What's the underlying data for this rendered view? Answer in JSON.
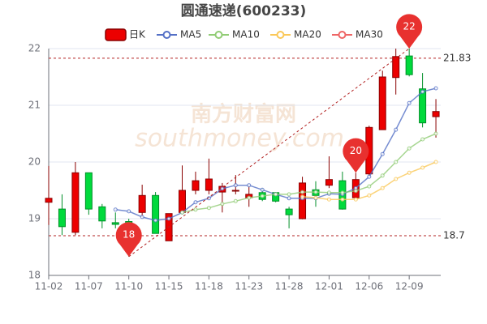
{
  "chart_data": {
    "type": "candlestick",
    "title": "圆通速递(600233)",
    "watermark": [
      "南方财富网",
      "southmoney.com"
    ],
    "categories": [
      "11-02",
      null,
      null,
      "11-07",
      null,
      null,
      "11-10",
      null,
      null,
      "11-15",
      null,
      null,
      "11-18",
      null,
      null,
      "11-23",
      null,
      null,
      "11-28",
      null,
      null,
      "12-01",
      null,
      null,
      "12-06",
      null,
      null,
      "12-09",
      null,
      null
    ],
    "candles": {
      "name": "日K",
      "color_up": "#ec0000",
      "color_down": "#00da3c",
      "border_up": "#8a0000",
      "border_down": "#008f28",
      "open": [
        19.29,
        19.17,
        18.76,
        19.81,
        19.21,
        18.93,
        18.95,
        19.11,
        19.41,
        18.61,
        19.11,
        19.5,
        19.5,
        19.47,
        19.49,
        19.37,
        19.46,
        19.46,
        19.17,
        19.0,
        19.51,
        19.59,
        19.67,
        19.37,
        19.79,
        20.57,
        21.49,
        21.87,
        21.29,
        20.8
      ],
      "close": [
        19.36,
        18.86,
        19.81,
        19.17,
        18.96,
        18.9,
        18.9,
        19.41,
        18.74,
        19.09,
        19.5,
        19.67,
        19.7,
        19.57,
        19.5,
        19.43,
        19.34,
        19.31,
        19.07,
        19.63,
        19.41,
        19.69,
        19.17,
        19.69,
        20.61,
        21.5,
        21.86,
        21.54,
        20.69,
        20.89
      ],
      "high": [
        19.93,
        19.43,
        20.0,
        19.81,
        19.26,
        19.11,
        19.0,
        19.6,
        19.47,
        19.09,
        19.94,
        19.83,
        20.06,
        19.63,
        19.77,
        19.57,
        19.54,
        19.47,
        19.21,
        19.74,
        19.66,
        20.1,
        19.83,
        19.81,
        20.64,
        21.61,
        22.0,
        22.0,
        21.57,
        21.11
      ],
      "low": [
        18.89,
        18.71,
        18.71,
        19.07,
        18.83,
        18.83,
        18.33,
        19.03,
        18.74,
        18.61,
        19.11,
        19.43,
        19.43,
        19.11,
        19.43,
        19.21,
        19.31,
        19.29,
        18.83,
        18.99,
        19.21,
        19.54,
        19.16,
        19.36,
        19.77,
        20.57,
        21.19,
        21.51,
        20.61,
        20.43
      ]
    },
    "series": [
      {
        "name": "MA5",
        "color": "#5470c6",
        "values": [
          null,
          null,
          null,
          null,
          null,
          19.16,
          19.13,
          19.03,
          18.97,
          19.0,
          19.11,
          19.29,
          19.36,
          19.53,
          19.59,
          19.59,
          19.51,
          19.43,
          19.36,
          19.36,
          19.36,
          19.44,
          19.43,
          19.54,
          19.74,
          20.14,
          20.57,
          21.04,
          21.24,
          21.3
        ]
      },
      {
        "name": "MA10",
        "color": "#91cc75",
        "values": [
          null,
          null,
          null,
          null,
          null,
          null,
          null,
          null,
          null,
          null,
          19.11,
          19.16,
          19.19,
          19.26,
          19.31,
          19.37,
          19.4,
          19.43,
          19.43,
          19.47,
          19.47,
          19.46,
          19.46,
          19.49,
          19.57,
          19.76,
          20.0,
          20.24,
          20.4,
          20.5
        ]
      },
      {
        "name": "MA20",
        "color": "#fac858",
        "values": [
          null,
          null,
          null,
          null,
          null,
          null,
          null,
          null,
          null,
          null,
          null,
          null,
          null,
          null,
          null,
          null,
          null,
          null,
          null,
          19.39,
          19.37,
          19.34,
          19.34,
          19.34,
          19.41,
          19.54,
          19.7,
          19.81,
          19.9,
          20.0
        ]
      },
      {
        "name": "MA30",
        "color": "#ee6666",
        "values": [
          null,
          null,
          null,
          null,
          null,
          null,
          null,
          null,
          null,
          null,
          null,
          null,
          null,
          null,
          null,
          null,
          null,
          null,
          null,
          null,
          null,
          null,
          null,
          null,
          null,
          null,
          null,
          null,
          null,
          null
        ]
      }
    ],
    "markers": [
      {
        "value": 18,
        "index": 6,
        "at": "low"
      },
      {
        "value": 20,
        "index": 23,
        "at": "high"
      },
      {
        "value": 22,
        "index": 27,
        "at": "high"
      }
    ],
    "marker_color": "#e8312f",
    "reference_lines": [
      {
        "value": 21.83
      },
      {
        "value": 18.7
      }
    ],
    "reference_color": "#b22222",
    "ylim": [
      18,
      22
    ],
    "yticks": [
      18,
      19,
      20,
      21,
      22
    ],
    "grid": true
  }
}
